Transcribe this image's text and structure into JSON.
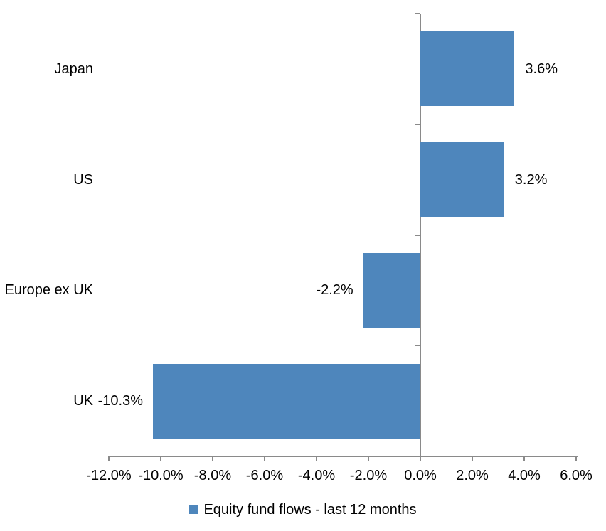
{
  "chart_data": {
    "type": "bar",
    "orientation": "horizontal",
    "title": "",
    "categories": [
      "Japan",
      "US",
      "Europe ex UK",
      "UK"
    ],
    "values": [
      3.6,
      3.2,
      -2.2,
      -10.3
    ],
    "value_labels": [
      "3.6%",
      "3.2%",
      "-2.2%",
      "-10.3%"
    ],
    "series_name": "Equity fund flows - last 12 months",
    "xlim": [
      -12,
      6
    ],
    "x_ticks": [
      -12,
      -10,
      -8,
      -6,
      -4,
      -2,
      0,
      2,
      4,
      6
    ],
    "x_tick_labels": [
      "-12.0%",
      "-10.0%",
      "-8.0%",
      "-6.0%",
      "-4.0%",
      "-2.0%",
      "0.0%",
      "2.0%",
      "4.0%",
      "6.0%"
    ],
    "grid": false,
    "legend_position": "bottom",
    "colors": {
      "bar": "#4e86bc",
      "axis": "#8a8a8a",
      "text": "#000000",
      "background": "#ffffff"
    }
  }
}
